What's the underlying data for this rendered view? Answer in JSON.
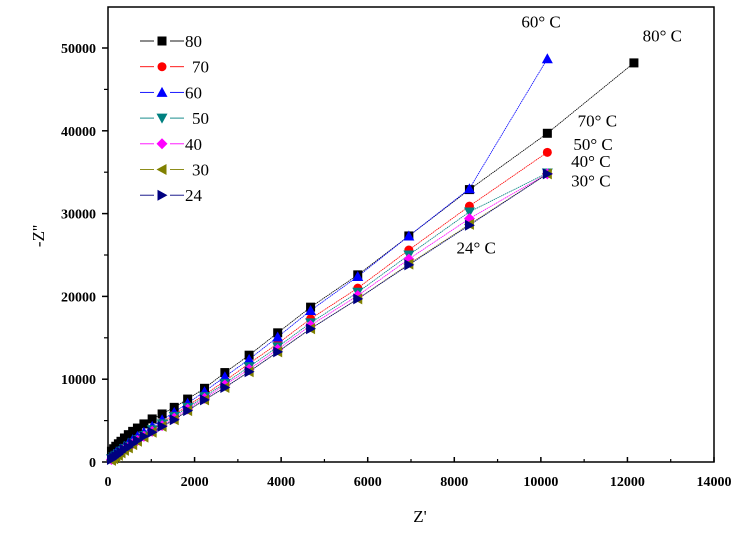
{
  "chart_data": {
    "type": "scatter",
    "title": "",
    "xlabel": "Z'",
    "ylabel": "-Z''",
    "xlim": [
      0,
      14000
    ],
    "ylim": [
      0,
      52000
    ],
    "xticks": [
      0,
      2000,
      4000,
      6000,
      8000,
      10000,
      12000,
      14000
    ],
    "xtick_labels": [
      "0",
      "2000",
      "4000",
      "6000",
      "8000",
      "10000",
      "12000",
      "14000"
    ],
    "yticks": [
      0,
      10000,
      20000,
      30000,
      40000,
      50000
    ],
    "ytick_labels": [
      "0",
      "10000",
      "20000",
      "30000",
      "40000",
      "50000"
    ],
    "grid": false,
    "legend_position": "top-left",
    "series": [
      {
        "name": "80",
        "color": "#000000",
        "marker": "square",
        "x": [
          80,
          130,
          180,
          240,
          300,
          380,
          470,
          570,
          680,
          830,
          1020,
          1250,
          1530,
          1840,
          2230,
          2700,
          3260,
          3920,
          4680,
          5770,
          6950,
          8350,
          10150,
          12150
        ],
        "y": [
          1300,
          1600,
          1900,
          2200,
          2500,
          2900,
          3300,
          3700,
          4100,
          4600,
          5200,
          5800,
          6600,
          7600,
          8900,
          10800,
          12900,
          15600,
          18700,
          22600,
          27300,
          32900,
          39700,
          48200
        ]
      },
      {
        "name": "70",
        "color": "#ff0000",
        "marker": "circle",
        "x": [
          80,
          130,
          180,
          240,
          300,
          380,
          470,
          570,
          680,
          830,
          1020,
          1250,
          1530,
          1840,
          2230,
          2700,
          3260,
          3920,
          4680,
          5770,
          6950,
          8350,
          10150
        ],
        "y": [
          500,
          700,
          900,
          1100,
          1400,
          1700,
          2000,
          2400,
          2800,
          3300,
          4000,
          4800,
          5700,
          6800,
          8100,
          9800,
          11900,
          14300,
          17300,
          21000,
          25600,
          30900,
          37400
        ]
      },
      {
        "name": "60",
        "color": "#0000ff",
        "marker": "triangle-up",
        "x": [
          80,
          130,
          180,
          240,
          300,
          380,
          470,
          570,
          680,
          830,
          1020,
          1250,
          1530,
          1840,
          2230,
          2700,
          3260,
          3920,
          4680,
          5770,
          6950,
          8350,
          10150
        ],
        "y": [
          700,
          900,
          1100,
          1300,
          1600,
          1900,
          2300,
          2700,
          3100,
          3600,
          4300,
          5100,
          6000,
          7100,
          8500,
          10300,
          12400,
          15100,
          18300,
          22400,
          27300,
          33000,
          48700
        ]
      },
      {
        "name": "50",
        "color": "#008080",
        "marker": "triangle-down",
        "x": [
          80,
          130,
          180,
          240,
          300,
          380,
          470,
          570,
          680,
          830,
          1020,
          1250,
          1530,
          1840,
          2230,
          2700,
          3260,
          3920,
          4680,
          5770,
          6950,
          8350,
          10150
        ],
        "y": [
          400,
          600,
          800,
          1000,
          1300,
          1600,
          1900,
          2300,
          2700,
          3200,
          3900,
          4600,
          5500,
          6600,
          7900,
          9500,
          11500,
          13900,
          16800,
          20500,
          25000,
          30200,
          34900
        ]
      },
      {
        "name": "40",
        "color": "#ff00ff",
        "marker": "diamond",
        "x": [
          80,
          130,
          180,
          240,
          300,
          380,
          470,
          570,
          680,
          830,
          1020,
          1250,
          1530,
          1840,
          2230,
          2700,
          3260,
          3920,
          4680,
          5770,
          6950,
          8350,
          10150
        ],
        "y": [
          300,
          500,
          700,
          900,
          1200,
          1500,
          1800,
          2200,
          2600,
          3100,
          3700,
          4400,
          5300,
          6400,
          7700,
          9300,
          11200,
          13600,
          16500,
          20100,
          24500,
          29400,
          34800
        ]
      },
      {
        "name": "30",
        "color": "#808000",
        "marker": "triangle-left",
        "x": [
          80,
          130,
          180,
          240,
          300,
          380,
          470,
          570,
          680,
          830,
          1020,
          1250,
          1530,
          1840,
          2230,
          2700,
          3260,
          3920,
          4680,
          5770,
          6950,
          8350,
          10150
        ],
        "y": [
          200,
          400,
          600,
          800,
          1100,
          1400,
          1700,
          2100,
          2500,
          3000,
          3600,
          4300,
          5100,
          6200,
          7500,
          9000,
          10900,
          13300,
          16100,
          19700,
          23900,
          28700,
          34800
        ]
      },
      {
        "name": "24",
        "color": "#000080",
        "marker": "triangle-right",
        "x": [
          80,
          130,
          180,
          240,
          300,
          380,
          470,
          570,
          680,
          830,
          1020,
          1250,
          1530,
          1840,
          2230,
          2700,
          3260,
          3920,
          4680,
          5770,
          6950,
          8350,
          10150
        ],
        "y": [
          300,
          500,
          700,
          900,
          1200,
          1500,
          1800,
          2200,
          2600,
          3100,
          3600,
          4300,
          5100,
          6200,
          7500,
          9000,
          10900,
          13300,
          16100,
          19700,
          23800,
          28600,
          34800
        ]
      }
    ],
    "annotations": [
      {
        "text": "60° C",
        "x": 9550,
        "y": 52500
      },
      {
        "text": "80° C",
        "x": 12350,
        "y": 50800
      },
      {
        "text": "70° C",
        "x": 10850,
        "y": 40500
      },
      {
        "text": "50° C",
        "x": 10750,
        "y": 37700
      },
      {
        "text": "40° C",
        "x": 10700,
        "y": 35600
      },
      {
        "text": "30° C",
        "x": 10700,
        "y": 33300
      },
      {
        "text": "24° C",
        "x": 8050,
        "y": 25200
      }
    ]
  }
}
